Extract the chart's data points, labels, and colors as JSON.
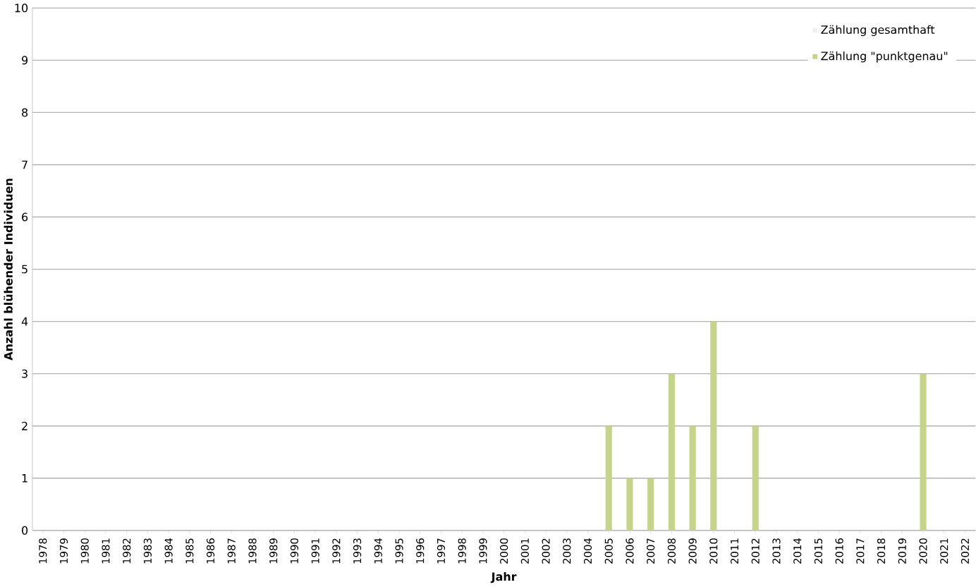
{
  "chart_data": {
    "type": "bar",
    "xlabel": "Jahr",
    "ylabel": "Anzahl blühender Individuen",
    "categories": [
      "1978",
      "1979",
      "1980",
      "1981",
      "1982",
      "1983",
      "1984",
      "1985",
      "1986",
      "1987",
      "1988",
      "1989",
      "1990",
      "1991",
      "1992",
      "1993",
      "1994",
      "1995",
      "1996",
      "1997",
      "1998",
      "1999",
      "2000",
      "2001",
      "2002",
      "2003",
      "2004",
      "2005",
      "2006",
      "2007",
      "2008",
      "2009",
      "2010",
      "2011",
      "2012",
      "2013",
      "2014",
      "2015",
      "2016",
      "2017",
      "2018",
      "2019",
      "2020",
      "2021",
      "2022"
    ],
    "series": [
      {
        "name": "Zählung gesamthaft",
        "color": "#f0f0f0",
        "values": [
          null,
          null,
          null,
          null,
          null,
          null,
          null,
          null,
          null,
          null,
          null,
          null,
          null,
          null,
          null,
          null,
          null,
          null,
          null,
          null,
          null,
          null,
          null,
          null,
          null,
          null,
          null,
          null,
          null,
          null,
          null,
          null,
          null,
          null,
          null,
          null,
          null,
          null,
          null,
          null,
          null,
          null,
          null,
          null,
          null
        ]
      },
      {
        "name": "Zählung \"punktgenau\"",
        "color": "#c5d48a",
        "values": [
          null,
          null,
          null,
          null,
          null,
          null,
          null,
          null,
          null,
          null,
          null,
          null,
          null,
          null,
          null,
          null,
          null,
          null,
          null,
          null,
          null,
          null,
          null,
          null,
          null,
          null,
          null,
          2,
          1,
          1,
          3,
          2,
          4,
          null,
          2,
          null,
          null,
          null,
          null,
          null,
          null,
          null,
          3,
          null,
          null
        ]
      }
    ],
    "ylim": [
      0,
      10
    ],
    "yticks": [
      0,
      1,
      2,
      3,
      4,
      5,
      6,
      7,
      8,
      9,
      10
    ],
    "grid": "y",
    "legend": "top right"
  }
}
